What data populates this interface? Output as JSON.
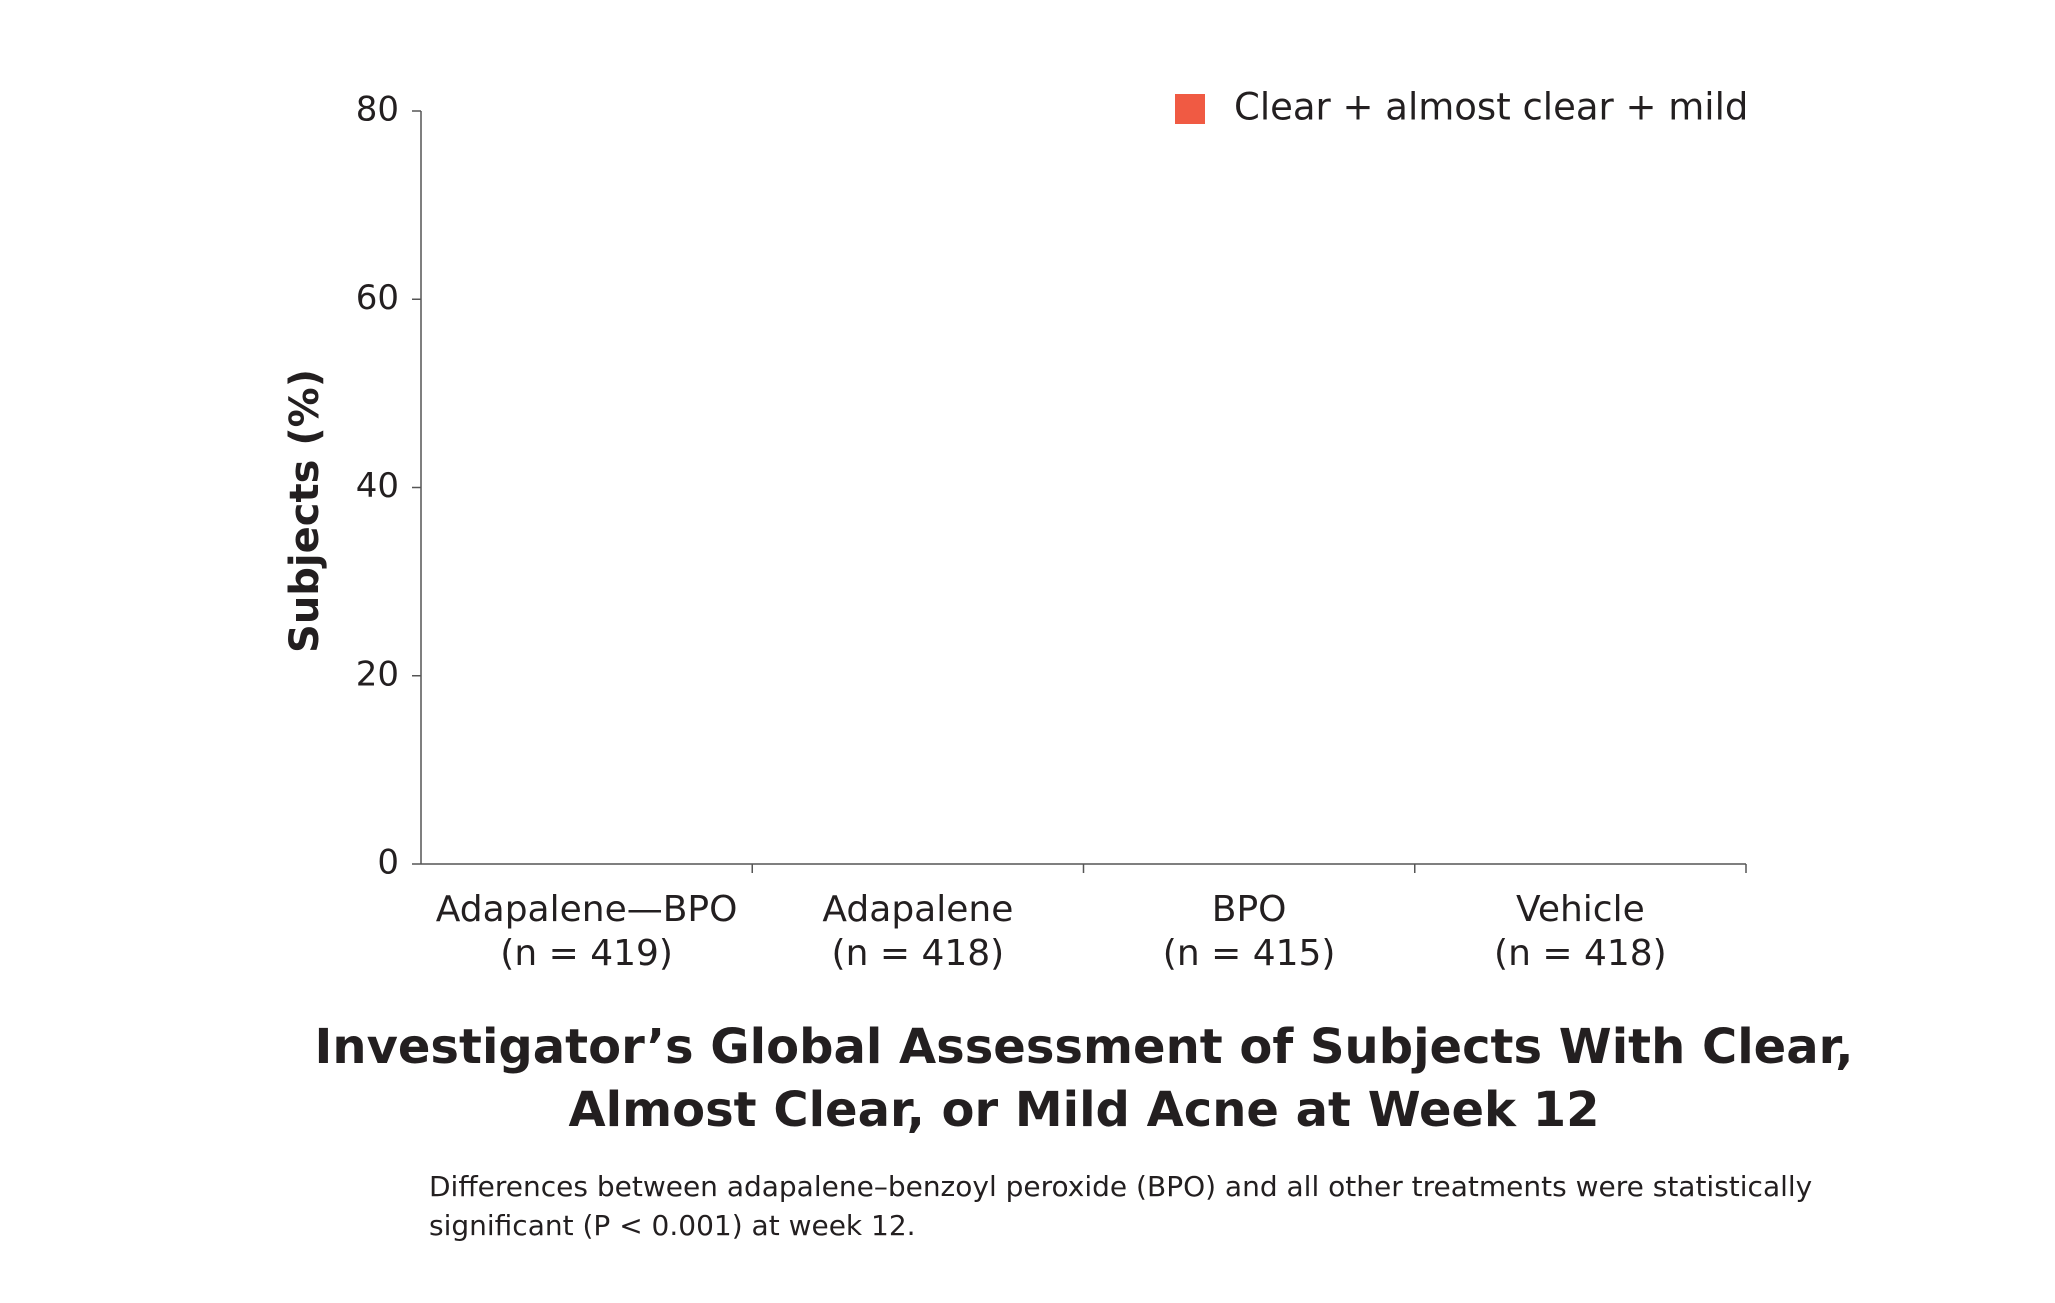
{
  "chart_data": {
    "type": "bar",
    "title": [
      "Investigator’s Global Assessment of Subjects With Clear,",
      "Almost Clear, or Mild Acne at Week 12"
    ],
    "footnote": [
      "Differences between adapalene–benzoyl peroxide (BPO) and all other treatments were statistically",
      "significant (P < 0.001) at week 12."
    ],
    "y_label": "Subjects (%)",
    "categories": [
      [
        "Adapalene—BPO",
        "(n = 419)"
      ],
      [
        "Adapalene",
        "(n = 418)"
      ],
      [
        "BPO",
        "(n = 415)"
      ],
      [
        "Vehicle",
        "(n = 418)"
      ]
    ],
    "series": [
      {
        "name": "Clear + almost clear + mild",
        "color": "#f05a43",
        "values": [
          null,
          null,
          null,
          null
        ]
      }
    ],
    "ylim": [
      0,
      80
    ],
    "yticks": [
      0,
      20,
      40,
      60,
      80
    ],
    "legend": "top-right"
  }
}
